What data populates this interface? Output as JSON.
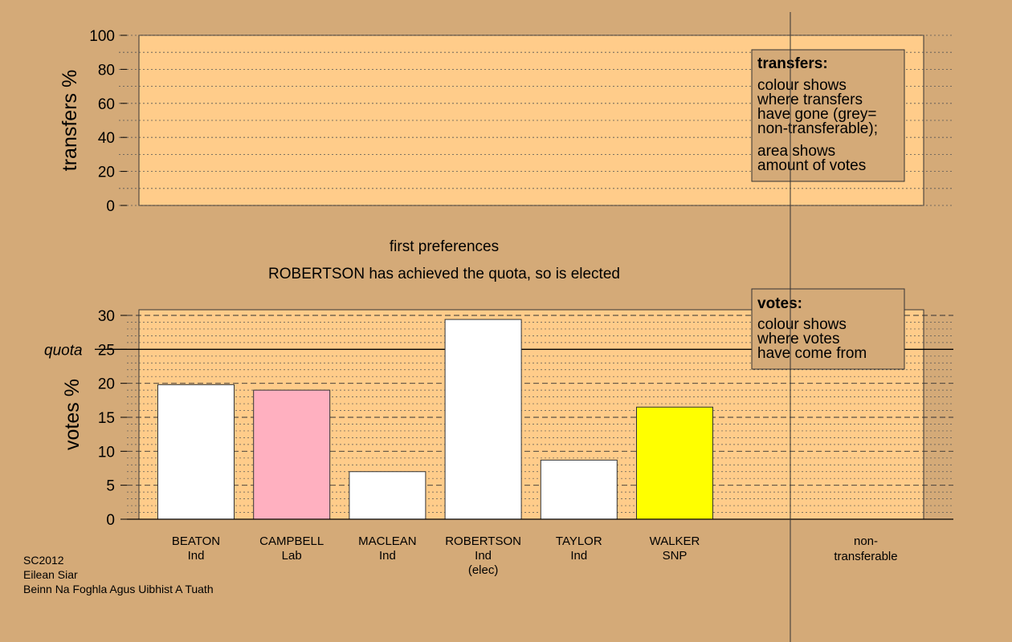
{
  "colors": {
    "background": "#d4aa78",
    "plot_area": "#ffcc8a",
    "non_transferable": "#aaaaaa"
  },
  "chart_data": [
    {
      "type": "bar",
      "panel": "transfers",
      "ylabel": "transfers %",
      "ylim": [
        0,
        100
      ],
      "yticks": [
        "0",
        "20",
        "40",
        "60",
        "80",
        "100"
      ],
      "grid": true,
      "series": [],
      "legend": {
        "placement": "top-right",
        "title": "transfers:",
        "lines": [
          "colour shows",
          "where transfers",
          "have gone (grey=",
          "non-transferable);",
          "area shows",
          "amount of votes"
        ]
      }
    },
    {
      "type": "bar",
      "panel": "votes",
      "ylabel": "votes %",
      "ylim": [
        0,
        30
      ],
      "yticks": [
        "0",
        "5",
        "10",
        "15",
        "20",
        "25",
        "30"
      ],
      "grid": true,
      "quota": {
        "label": "quota",
        "value": 25
      },
      "categories": [
        {
          "lines": [
            "BEATON",
            "Ind"
          ],
          "value": 19.8,
          "color": "#ffffff"
        },
        {
          "lines": [
            "CAMPBELL",
            "Lab"
          ],
          "value": 19.0,
          "color": "#ffb0c0"
        },
        {
          "lines": [
            "MACLEAN",
            "Ind"
          ],
          "value": 7.0,
          "color": "#ffffff"
        },
        {
          "lines": [
            "ROBERTSON",
            "Ind",
            "(elec)"
          ],
          "value": 29.4,
          "color": "#ffffff"
        },
        {
          "lines": [
            "TAYLOR",
            "Ind"
          ],
          "value": 8.7,
          "color": "#ffffff"
        },
        {
          "lines": [
            "WALKER",
            "SNP"
          ],
          "value": 16.5,
          "color": "#ffff00"
        }
      ],
      "non_transferable": {
        "lines": [
          "non-",
          "transferable"
        ],
        "value": 0
      },
      "legend": {
        "placement": "top-right",
        "title": "votes:",
        "lines": [
          "colour shows",
          "where votes",
          "have come from"
        ]
      }
    }
  ],
  "stage": "first preferences",
  "status_message": "ROBERTSON has achieved the quota, so is elected",
  "footer": [
    "SC2012",
    "Eilean Siar",
    "Beinn Na Foghla Agus Uibhist A Tuath"
  ]
}
